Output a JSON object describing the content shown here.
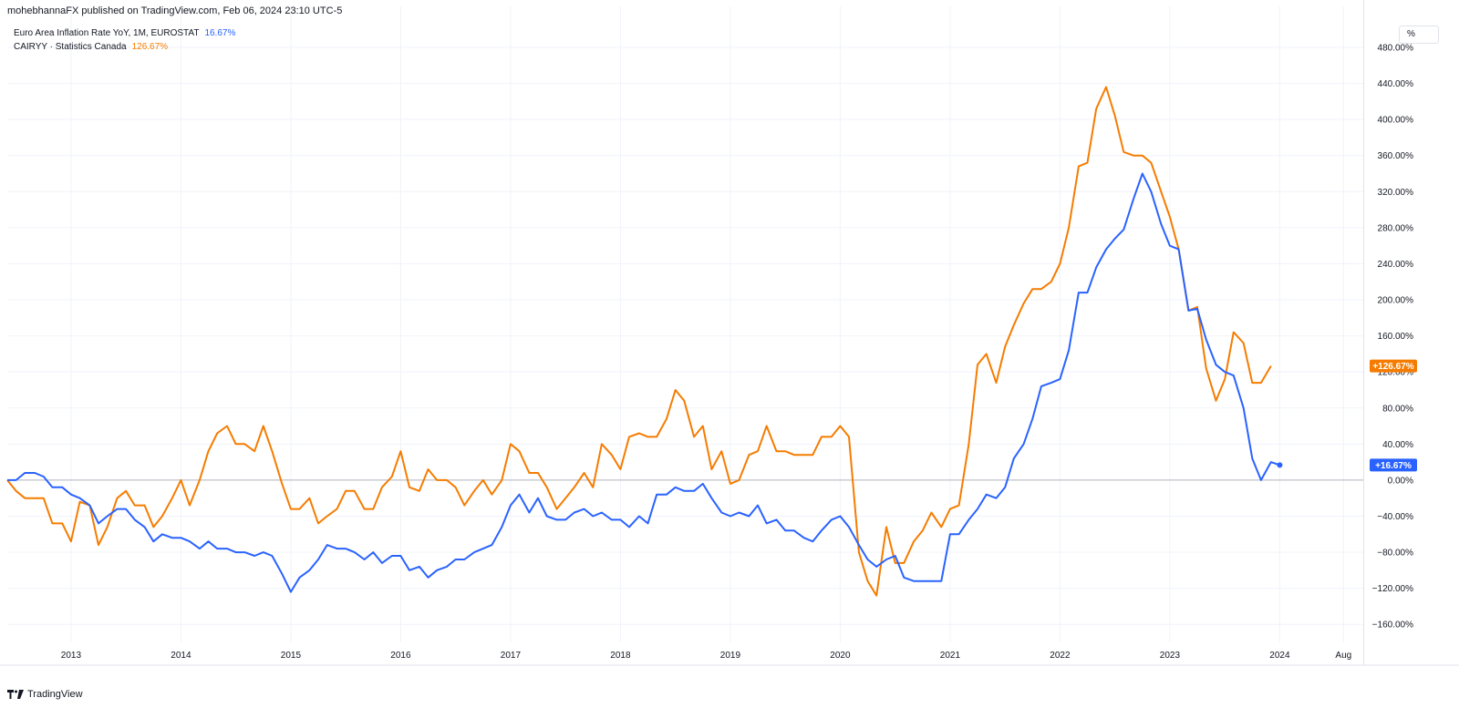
{
  "header": {
    "published": "mohebhannaFX published on TradingView.com, Feb 06, 2024 23:10 UTC-5"
  },
  "legend": {
    "items": [
      {
        "label": "Euro Area Inflation Rate YoY, 1M, EUROSTAT",
        "value": "16.67%",
        "color": "#2962ff"
      },
      {
        "label": "CAIRYY · Statistics Canada",
        "value": "126.67%",
        "color": "#f57c00"
      }
    ]
  },
  "scale_button": {
    "label": "%"
  },
  "footer": {
    "brand": "TradingView"
  },
  "colors": {
    "blue": "#2962ff",
    "orange": "#f57c00",
    "grid": "#f0f3fa",
    "zero_line": "#b2b5be"
  },
  "chart_data": {
    "type": "line",
    "ylim": [
      -180,
      480
    ],
    "yticks": [
      -160,
      -120,
      -80,
      -40,
      0,
      40,
      80,
      120,
      160,
      200,
      240,
      280,
      320,
      360,
      400,
      440,
      480
    ],
    "ytick_labels": [
      "−160.00%",
      "−120.00%",
      "−80.00%",
      "−40.00%",
      "0.00%",
      "40.00%",
      "80.00%",
      "120.00%",
      "160.00%",
      "200.00%",
      "240.00%",
      "280.00%",
      "320.00%",
      "360.00%",
      "400.00%",
      "440.00%",
      "480.00%"
    ],
    "x_range": [
      2012.42,
      2024.76
    ],
    "xticks": [
      2013,
      2014,
      2015,
      2016,
      2017,
      2018,
      2019,
      2020,
      2021,
      2022,
      2023,
      2024,
      2024.58
    ],
    "xtick_labels": [
      "2013",
      "2014",
      "2015",
      "2016",
      "2017",
      "2018",
      "2019",
      "2020",
      "2021",
      "2022",
      "2023",
      "2024",
      "Aug"
    ],
    "grid": true,
    "series": [
      {
        "name": "Euro Area Inflation Rate YoY, 1M, EUROSTAT",
        "color": "#2962ff",
        "last_label": "+16.67%",
        "x": [
          2012.42,
          2012.5,
          2012.58,
          2012.67,
          2012.75,
          2012.83,
          2012.92,
          2013.0,
          2013.08,
          2013.17,
          2013.25,
          2013.33,
          2013.42,
          2013.5,
          2013.58,
          2013.67,
          2013.75,
          2013.83,
          2013.92,
          2014.0,
          2014.08,
          2014.17,
          2014.25,
          2014.33,
          2014.42,
          2014.5,
          2014.58,
          2014.67,
          2014.75,
          2014.83,
          2014.92,
          2015.0,
          2015.08,
          2015.17,
          2015.25,
          2015.33,
          2015.42,
          2015.5,
          2015.58,
          2015.67,
          2015.75,
          2015.83,
          2015.92,
          2016.0,
          2016.08,
          2016.17,
          2016.25,
          2016.33,
          2016.42,
          2016.5,
          2016.58,
          2016.67,
          2016.75,
          2016.83,
          2016.92,
          2017.0,
          2017.08,
          2017.17,
          2017.25,
          2017.33,
          2017.42,
          2017.5,
          2017.58,
          2017.67,
          2017.75,
          2017.83,
          2017.92,
          2018.0,
          2018.08,
          2018.17,
          2018.25,
          2018.33,
          2018.42,
          2018.5,
          2018.58,
          2018.67,
          2018.75,
          2018.83,
          2018.92,
          2019.0,
          2019.08,
          2019.17,
          2019.25,
          2019.33,
          2019.42,
          2019.5,
          2019.58,
          2019.67,
          2019.75,
          2019.83,
          2019.92,
          2020.0,
          2020.08,
          2020.17,
          2020.25,
          2020.33,
          2020.42,
          2020.5,
          2020.58,
          2020.67,
          2020.75,
          2020.83,
          2020.92,
          2021.0,
          2021.08,
          2021.17,
          2021.25,
          2021.33,
          2021.42,
          2021.5,
          2021.58,
          2021.67,
          2021.75,
          2021.83,
          2021.92,
          2022.0,
          2022.08,
          2022.17,
          2022.25,
          2022.33,
          2022.42,
          2022.5,
          2022.58,
          2022.67,
          2022.75,
          2022.83,
          2022.92,
          2023.0,
          2023.08,
          2023.17,
          2023.25,
          2023.33,
          2023.42,
          2023.5,
          2023.58,
          2023.67,
          2023.75,
          2023.83,
          2023.92,
          2024.0
        ],
        "values": [
          0,
          0,
          8,
          8,
          4,
          -8,
          -8,
          -16,
          -20,
          -28,
          -48,
          -40,
          -32,
          -32,
          -44,
          -52,
          -68,
          -60,
          -64,
          -64,
          -68,
          -76,
          -68,
          -76,
          -76,
          -80,
          -80,
          -84,
          -80,
          -84,
          -104,
          -124,
          -108,
          -100,
          -88,
          -72,
          -76,
          -76,
          -80,
          -88,
          -80,
          -92,
          -84,
          -84,
          -100,
          -96,
          -108,
          -100,
          -96,
          -88,
          -88,
          -80,
          -76,
          -72,
          -52,
          -28,
          -16,
          -36,
          -20,
          -40,
          -44,
          -44,
          -36,
          -32,
          -40,
          -36,
          -44,
          -44,
          -52,
          -40,
          -48,
          -16,
          -16,
          -8,
          -12,
          -12,
          -4,
          -20,
          -36,
          -40,
          -36,
          -40,
          -28,
          -48,
          -44,
          -56,
          -56,
          -64,
          -68,
          -56,
          -44,
          -40,
          -52,
          -72,
          -88,
          -96,
          -88,
          -84,
          -108,
          -112,
          -112,
          -112,
          -112,
          -60,
          -60,
          -44,
          -32,
          -16,
          -20,
          -8,
          24,
          40,
          68,
          104,
          108,
          112,
          144,
          208,
          208,
          236,
          256,
          268,
          278,
          312,
          340,
          320,
          284,
          260,
          256,
          188,
          190,
          156,
          128,
          120,
          116,
          80,
          24,
          0,
          20,
          16.67
        ]
      },
      {
        "name": "CAIRYY · Statistics Canada",
        "color": "#f57c00",
        "last_label": "+126.67%",
        "x": [
          2012.42,
          2012.5,
          2012.58,
          2012.67,
          2012.75,
          2012.83,
          2012.92,
          2013.0,
          2013.08,
          2013.17,
          2013.25,
          2013.33,
          2013.42,
          2013.5,
          2013.58,
          2013.67,
          2013.75,
          2013.83,
          2013.92,
          2014.0,
          2014.08,
          2014.17,
          2014.25,
          2014.33,
          2014.42,
          2014.5,
          2014.58,
          2014.67,
          2014.75,
          2014.83,
          2014.92,
          2015.0,
          2015.08,
          2015.17,
          2015.25,
          2015.33,
          2015.42,
          2015.5,
          2015.58,
          2015.67,
          2015.75,
          2015.83,
          2015.92,
          2016.0,
          2016.08,
          2016.17,
          2016.25,
          2016.33,
          2016.42,
          2016.5,
          2016.58,
          2016.67,
          2016.75,
          2016.83,
          2016.92,
          2017.0,
          2017.08,
          2017.17,
          2017.25,
          2017.33,
          2017.42,
          2017.5,
          2017.58,
          2017.67,
          2017.75,
          2017.83,
          2017.92,
          2018.0,
          2018.08,
          2018.17,
          2018.25,
          2018.33,
          2018.42,
          2018.5,
          2018.58,
          2018.67,
          2018.75,
          2018.83,
          2018.92,
          2019.0,
          2019.08,
          2019.17,
          2019.25,
          2019.33,
          2019.42,
          2019.5,
          2019.58,
          2019.67,
          2019.75,
          2019.83,
          2019.92,
          2020.0,
          2020.08,
          2020.17,
          2020.25,
          2020.33,
          2020.42,
          2020.5,
          2020.58,
          2020.67,
          2020.75,
          2020.83,
          2020.92,
          2021.0,
          2021.08,
          2021.17,
          2021.25,
          2021.33,
          2021.42,
          2021.5,
          2021.58,
          2021.67,
          2021.75,
          2021.83,
          2021.92,
          2022.0,
          2022.08,
          2022.17,
          2022.25,
          2022.33,
          2022.42,
          2022.5,
          2022.58,
          2022.67,
          2022.75,
          2022.83,
          2022.92,
          2023.0,
          2023.08,
          2023.17,
          2023.25,
          2023.33,
          2023.42,
          2023.5,
          2023.58,
          2023.67,
          2023.75,
          2023.83,
          2023.92
        ],
        "values": [
          0,
          -12,
          -20,
          -20,
          -20,
          -48,
          -48,
          -68,
          -24,
          -28,
          -72,
          -52,
          -20,
          -12,
          -28,
          -28,
          -52,
          -40,
          -20,
          0,
          -28,
          0,
          32,
          52,
          60,
          40,
          40,
          32,
          60,
          32,
          -4,
          -32,
          -32,
          -20,
          -48,
          -40,
          -32,
          -12,
          -12,
          -32,
          -32,
          -8,
          4,
          32,
          -8,
          -12,
          12,
          0,
          0,
          -8,
          -28,
          -12,
          0,
          -16,
          0,
          40,
          32,
          8,
          8,
          -8,
          -32,
          -20,
          -8,
          8,
          -8,
          40,
          28,
          12,
          48,
          52,
          48,
          48,
          68,
          100,
          88,
          48,
          60,
          12,
          32,
          -4,
          0,
          28,
          32,
          60,
          32,
          32,
          28,
          28,
          28,
          48,
          48,
          60,
          48,
          -80,
          -112,
          -128,
          -52,
          -92,
          -92,
          -68,
          -56,
          -36,
          -52,
          -32,
          -28,
          40,
          128,
          140,
          108,
          148,
          172,
          196,
          212,
          212,
          220,
          240,
          280,
          348,
          352,
          412,
          436,
          404,
          364,
          360,
          360,
          352,
          320,
          292,
          256,
          188,
          192,
          124,
          88,
          112,
          164,
          152,
          108,
          108,
          126.67
        ]
      }
    ]
  }
}
